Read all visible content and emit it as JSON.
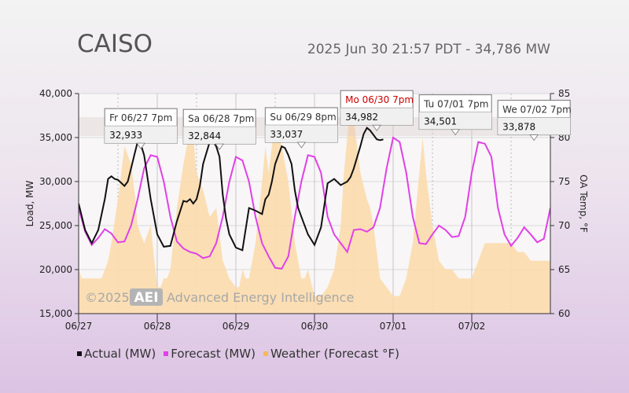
{
  "header": {
    "title": "CAISO",
    "subtitle": "2025 Jun 30 21:57 PDT - 34,786 MW"
  },
  "watermark": {
    "copyright": "©2025",
    "logo_text": "AEI",
    "company": "Advanced Energy Intelligence"
  },
  "chart_data": {
    "type": "line",
    "ylabel": "Load, MW",
    "y2label": "OA Temp, °F",
    "ylim": [
      15000,
      40000
    ],
    "y2lim": [
      60,
      85
    ],
    "xlim": [
      0,
      144
    ],
    "y_ticks": [
      15000,
      20000,
      25000,
      30000,
      35000,
      40000
    ],
    "y_tick_labels": [
      "15,000",
      "20,000",
      "25,000",
      "30,000",
      "35,000",
      "40,000"
    ],
    "y2_ticks": [
      60,
      65,
      70,
      75,
      80,
      85
    ],
    "y2_tick_labels": [
      "60",
      "65",
      "70",
      "75",
      "80",
      "85"
    ],
    "x_ticks": [
      0,
      24,
      48,
      72,
      96,
      120
    ],
    "x_tick_labels": [
      "06/27",
      "06/28",
      "06/29",
      "06/30",
      "07/01",
      "07/02"
    ],
    "x_unit": "hours from 06/27 00:00",
    "colors": {
      "actual": "#111111",
      "forecast": "#e040e8",
      "weather": "#fbd9a8",
      "plot_bg": "#f7f3f3",
      "grid": "#cfcfcf"
    },
    "series": [
      {
        "name": "Actual (MW)",
        "color": "#111111",
        "x": [
          0,
          2,
          4,
          6,
          8,
          9,
          10,
          11,
          12,
          14,
          15,
          16,
          17,
          18,
          19,
          20,
          22,
          24,
          26,
          28,
          30,
          32,
          33,
          34,
          35,
          36,
          37,
          38,
          40,
          41,
          42,
          43,
          44,
          45,
          46,
          48,
          50,
          52,
          54,
          56,
          57,
          58,
          59,
          60,
          62,
          63,
          64,
          65,
          66,
          67,
          68,
          70,
          72,
          74,
          76,
          78,
          80,
          81,
          82,
          83,
          84,
          86,
          87,
          88,
          89,
          90,
          91,
          92,
          93
        ],
        "y": [
          27500,
          24500,
          23000,
          24500,
          28000,
          30300,
          30600,
          30300,
          30200,
          29500,
          30000,
          31500,
          33000,
          34500,
          34200,
          33000,
          28000,
          24000,
          22600,
          22700,
          25500,
          27800,
          27700,
          28000,
          27500,
          28000,
          29500,
          32000,
          34500,
          34600,
          34000,
          32800,
          28500,
          25800,
          24000,
          22500,
          22200,
          27000,
          26700,
          26300,
          28000,
          28500,
          30000,
          32000,
          34000,
          33800,
          33000,
          32000,
          29000,
          27000,
          26000,
          24000,
          22800,
          24800,
          29800,
          30300,
          29600,
          29800,
          30000,
          30500,
          31500,
          34000,
          35400,
          36100,
          35800,
          35300,
          34800,
          34700,
          34786
        ]
      },
      {
        "name": "Forecast (MW)",
        "color": "#e040e8",
        "x": [
          0,
          2,
          4,
          6,
          8,
          10,
          12,
          14,
          16,
          18,
          20,
          22,
          24,
          26,
          28,
          30,
          32,
          34,
          36,
          38,
          40,
          42,
          44,
          46,
          48,
          50,
          52,
          54,
          56,
          58,
          60,
          62,
          64,
          66,
          68,
          70,
          72,
          74,
          76,
          78,
          80,
          82,
          84,
          86,
          88,
          90,
          92,
          94,
          96,
          98,
          100,
          102,
          104,
          106,
          108,
          110,
          112,
          114,
          116,
          118,
          120,
          122,
          124,
          126,
          128,
          130,
          132,
          134,
          136,
          138,
          140,
          142,
          144
        ],
        "y": [
          27000,
          24300,
          22800,
          23600,
          24600,
          24100,
          23100,
          23200,
          25000,
          28000,
          31500,
          33000,
          32800,
          30000,
          26000,
          23200,
          22400,
          22000,
          21800,
          21300,
          21500,
          23000,
          26000,
          30000,
          32800,
          32400,
          30000,
          26000,
          23000,
          21500,
          20200,
          20100,
          21500,
          26000,
          30000,
          33000,
          32800,
          31000,
          26000,
          24000,
          23000,
          22000,
          24500,
          24600,
          24300,
          24800,
          27000,
          31500,
          35000,
          34500,
          31000,
          26000,
          23000,
          22900,
          24000,
          25000,
          24500,
          23700,
          23800,
          26000,
          31000,
          34500,
          34300,
          32800,
          27000,
          24000,
          22700,
          23600,
          24800,
          24000,
          23100,
          23500,
          27000
        ]
      },
      {
        "name": "Weather (Forecast °F)",
        "color": "#fbd9a8",
        "x": [
          0,
          1,
          2,
          3,
          4,
          5,
          6,
          7,
          8,
          9,
          10,
          12,
          14,
          15,
          16,
          17,
          18,
          19,
          20,
          22,
          24,
          25,
          26,
          27,
          28,
          30,
          32,
          33,
          34,
          35,
          36,
          38,
          40,
          42,
          44,
          46,
          48,
          49,
          50,
          51,
          52,
          54,
          56,
          57,
          58,
          60,
          62,
          63,
          64,
          66,
          68,
          69,
          70,
          72,
          74,
          76,
          78,
          80,
          81,
          82,
          83,
          84,
          86,
          88,
          89,
          90,
          92,
          94,
          96,
          98,
          100,
          102,
          104,
          105,
          106,
          108,
          110,
          112,
          114,
          116,
          118,
          120,
          122,
          124,
          126,
          128,
          130,
          132,
          134,
          136,
          138,
          140,
          142,
          144
        ],
        "y": [
          65,
          64,
          64,
          64,
          64,
          64,
          64,
          64,
          65,
          66,
          68,
          73,
          79,
          78,
          77,
          74,
          70,
          69,
          68,
          70,
          63,
          63,
          64,
          64,
          65,
          72,
          77,
          79,
          80,
          80,
          76,
          74,
          71,
          72,
          66,
          64,
          63,
          63,
          65,
          64,
          64,
          68,
          75,
          79,
          76,
          82,
          79,
          77,
          75,
          68,
          64,
          64,
          65,
          62,
          62,
          63,
          65,
          70,
          76,
          80,
          84,
          82,
          76,
          73,
          72,
          70,
          64,
          63,
          62,
          62,
          64,
          68,
          76,
          80,
          76,
          70,
          66,
          65,
          65,
          64,
          64,
          64,
          66,
          68,
          68,
          68,
          68,
          68,
          67,
          67,
          66,
          66,
          66,
          66
        ]
      }
    ],
    "annotations": [
      {
        "day": "Fr 06/27 7pm",
        "value": "32,933",
        "x": 19,
        "y": 32933
      },
      {
        "day": "Sa 06/28 7pm",
        "value": "32,844",
        "x": 43,
        "y": 32844
      },
      {
        "day": "Su 06/29 8pm",
        "value": "33,037",
        "x": 68,
        "y": 33037
      },
      {
        "day": "Mo 06/30 7pm",
        "value": "34,982",
        "x": 91,
        "y": 34982,
        "current": true
      },
      {
        "day": "Tu 07/01 7pm",
        "value": "34,501",
        "x": 115,
        "y": 34501
      },
      {
        "day": "We 07/02 7pm",
        "value": "33,878",
        "x": 139,
        "y": 33878
      }
    ]
  }
}
